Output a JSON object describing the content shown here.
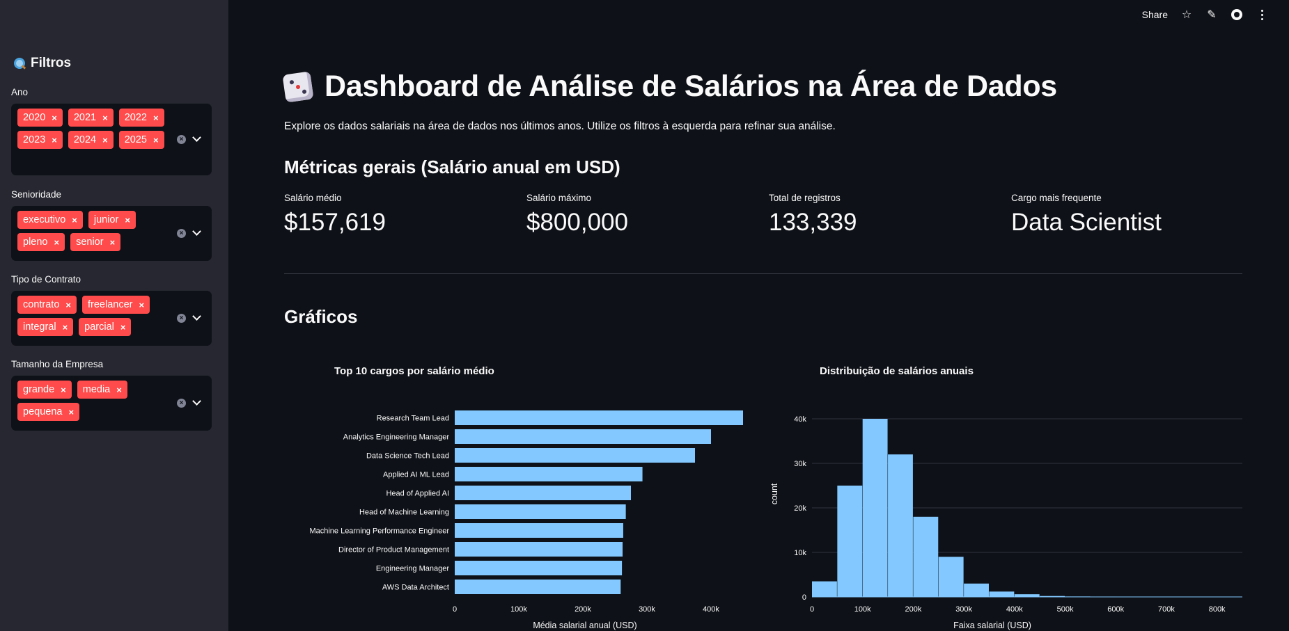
{
  "sidebar": {
    "title": "Filtros",
    "filters": [
      {
        "label": "Ano",
        "values": [
          "2020",
          "2021",
          "2022",
          "2023",
          "2024",
          "2025"
        ]
      },
      {
        "label": "Senioridade",
        "values": [
          "executivo",
          "junior",
          "pleno",
          "senior"
        ]
      },
      {
        "label": "Tipo de Contrato",
        "values": [
          "contrato",
          "freelancer",
          "integral",
          "parcial"
        ]
      },
      {
        "label": "Tamanho da Empresa",
        "values": [
          "grande",
          "media",
          "pequena"
        ]
      }
    ]
  },
  "toolbar": {
    "share_label": "Share"
  },
  "header": {
    "title": "Dashboard de Análise de Salários na Área de Dados",
    "subtitle": "Explore os dados salariais na área de dados nos últimos anos. Utilize os filtros à esquerda para refinar sua análise."
  },
  "metrics": {
    "heading": "Métricas gerais (Salário anual em USD)",
    "items": [
      {
        "label": "Salário médio",
        "value": "$157,619"
      },
      {
        "label": "Salário máximo",
        "value": "$800,000"
      },
      {
        "label": "Total de registros",
        "value": "133,339"
      },
      {
        "label": "Cargo mais frequente",
        "value": "Data Scientist"
      }
    ]
  },
  "charts_heading": "Gráficos",
  "chart_data": [
    {
      "type": "bar",
      "orientation": "horizontal",
      "title": "Top 10 cargos por salário médio",
      "xlabel": "Média salarial anual (USD)",
      "ylabel": "",
      "categories": [
        "Research Team Lead",
        "Analytics Engineering Manager",
        "Data Science Tech Lead",
        "Applied AI ML Lead",
        "Head of Applied AI",
        "Head of Machine Learning",
        "Machine Learning Performance Engineer",
        "Director of Product Management",
        "Engineering Manager",
        "AWS Data Architect"
      ],
      "values": [
        450000,
        400000,
        375000,
        293000,
        275000,
        267000,
        263000,
        262000,
        261000,
        259000
      ],
      "xlim": [
        0,
        450000
      ],
      "xticks": [
        "0",
        "100k",
        "200k",
        "300k",
        "400k"
      ],
      "xtick_values": [
        0,
        100000,
        200000,
        300000,
        400000
      ],
      "color": "#83c9ff"
    },
    {
      "type": "bar",
      "subtype": "histogram",
      "title": "Distribuição de salários anuais",
      "xlabel": "Faixa salarial (USD)",
      "ylabel": "count",
      "bin_width": 50000,
      "bin_start": 0,
      "values": [
        3500,
        25000,
        40000,
        32000,
        18000,
        9000,
        3000,
        1200,
        600,
        200,
        100,
        80,
        60,
        40,
        30,
        20,
        10
      ],
      "xlim": [
        0,
        850000
      ],
      "ylim": [
        0,
        40000
      ],
      "xticks": [
        "0",
        "100k",
        "200k",
        "300k",
        "400k",
        "500k",
        "600k",
        "700k",
        "800k"
      ],
      "xtick_values": [
        0,
        100000,
        200000,
        300000,
        400000,
        500000,
        600000,
        700000,
        800000
      ],
      "yticks": [
        "0",
        "10k",
        "20k",
        "30k",
        "40k"
      ],
      "ytick_values": [
        0,
        10000,
        20000,
        30000,
        40000
      ],
      "grid": true,
      "color": "#83c9ff"
    }
  ]
}
